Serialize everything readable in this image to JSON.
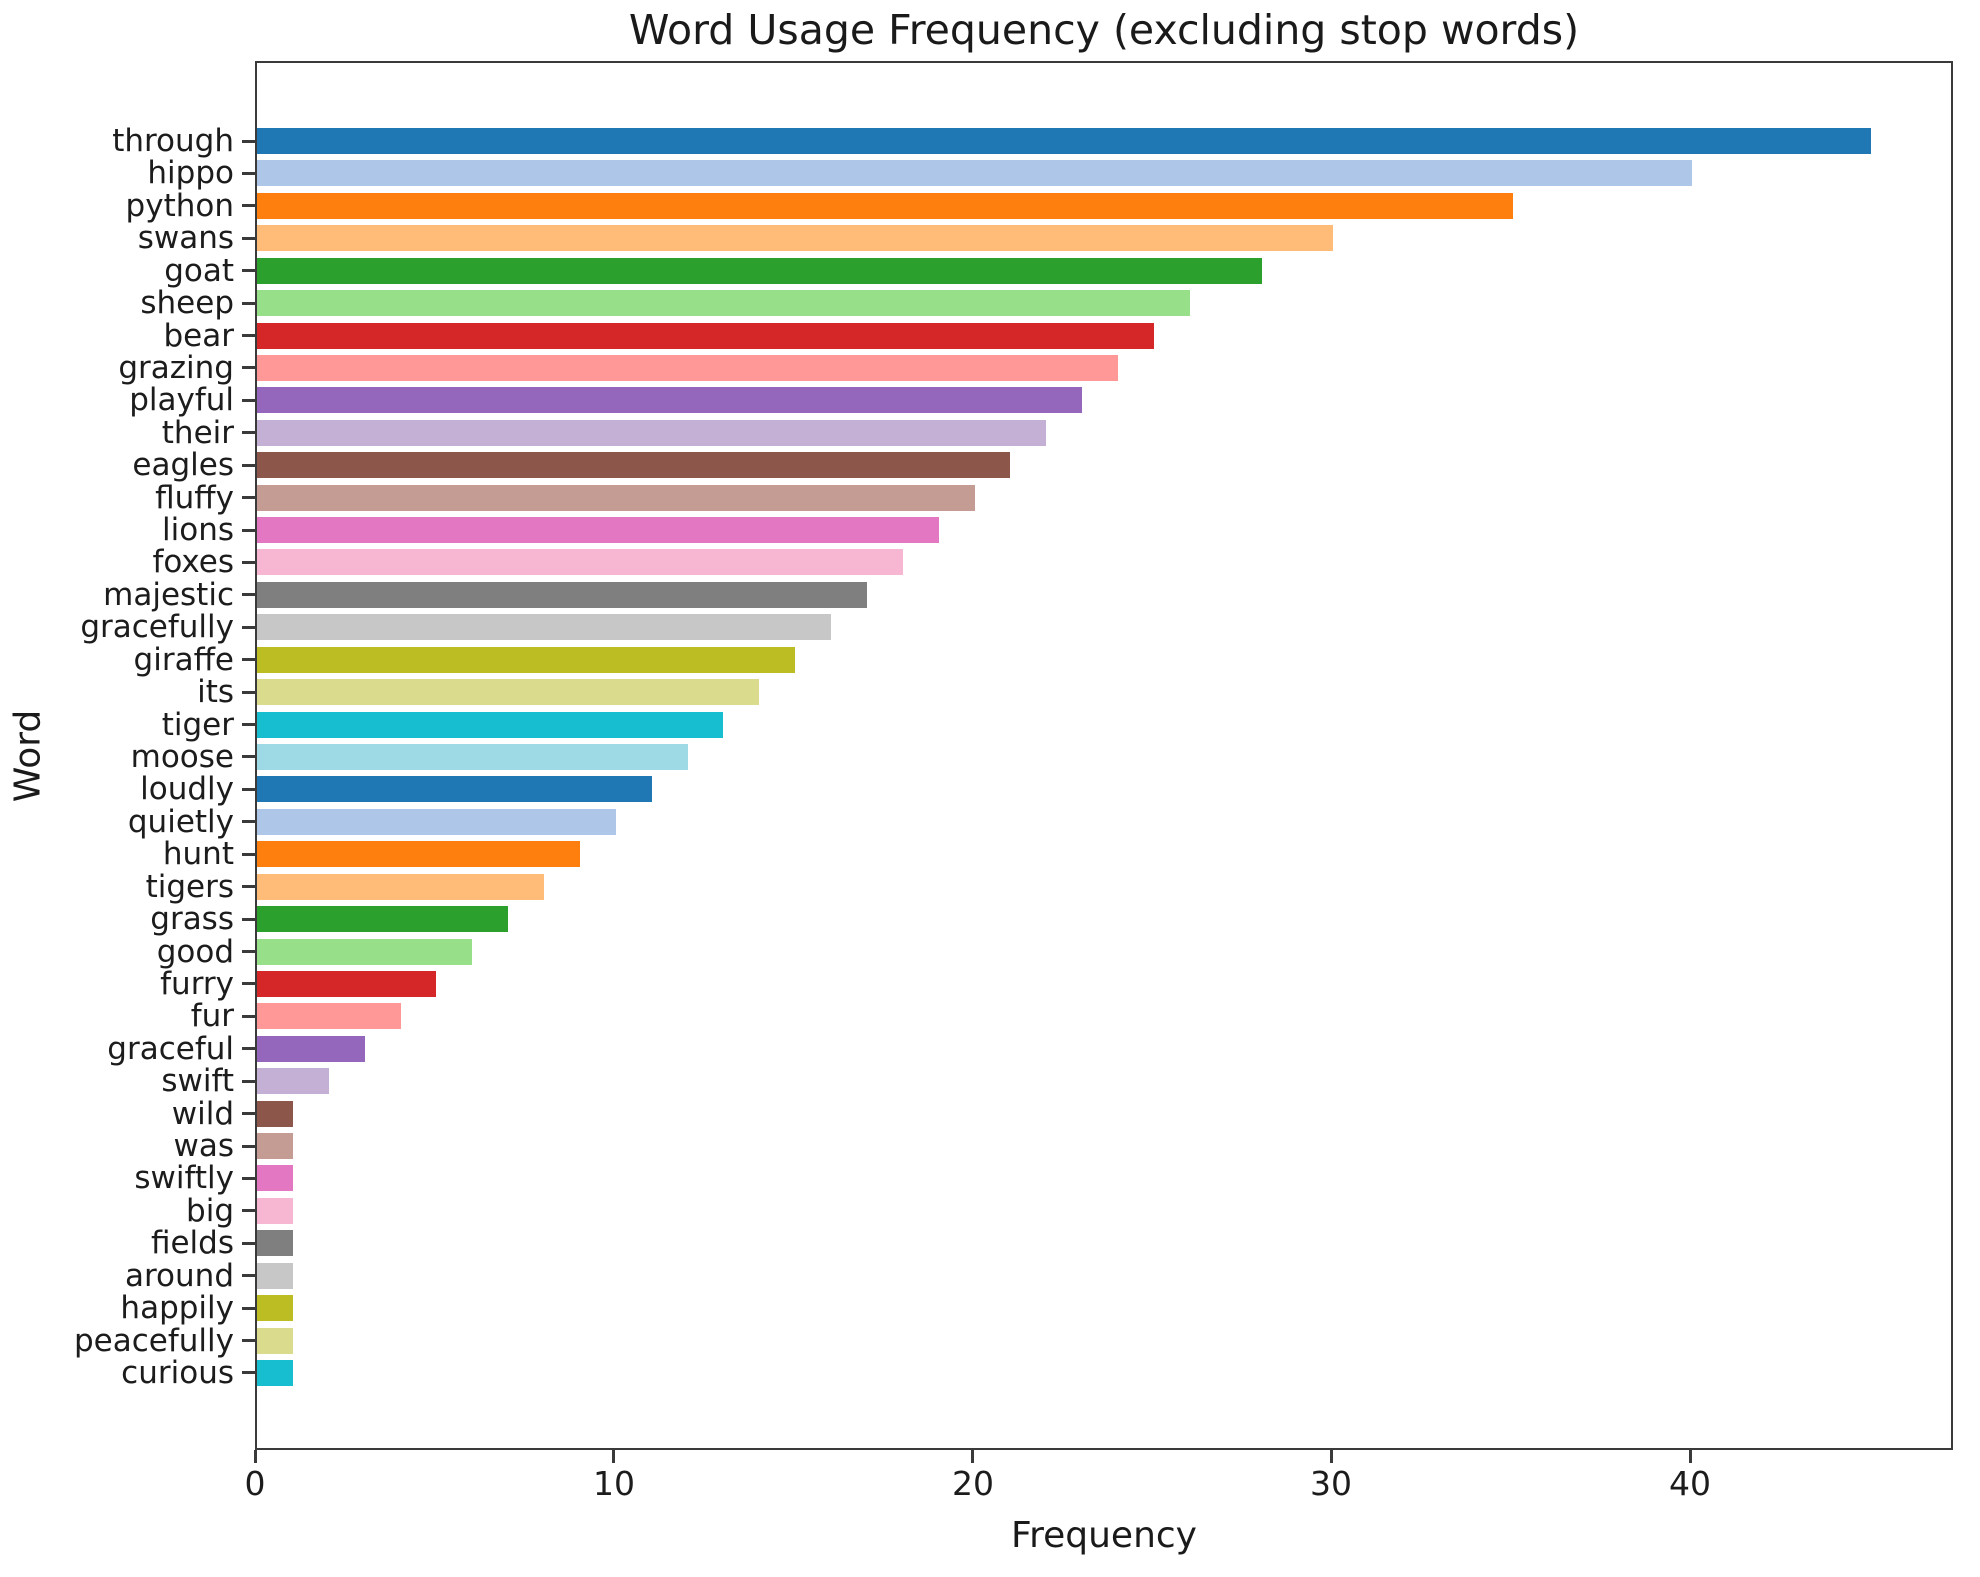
{
  "chart_data": {
    "type": "bar",
    "orientation": "horizontal",
    "title": "Word Usage Frequency (excluding stop words)",
    "xlabel": "Frequency",
    "ylabel": "Word",
    "xlim": [
      0,
      47.3
    ],
    "xticks": [
      0,
      10,
      20,
      30,
      40
    ],
    "grid": false,
    "legend": false,
    "categories": [
      "through",
      "hippo",
      "python",
      "swans",
      "goat",
      "sheep",
      "bear",
      "grazing",
      "playful",
      "their",
      "eagles",
      "fluffy",
      "lions",
      "foxes",
      "majestic",
      "gracefully",
      "giraffe",
      "its",
      "tiger",
      "moose",
      "loudly",
      "quietly",
      "hunt",
      "tigers",
      "grass",
      "good",
      "furry",
      "fur",
      "graceful",
      "swift",
      "wild",
      "was",
      "swiftly",
      "big",
      "fields",
      "around",
      "happily",
      "peacefully",
      "curious"
    ],
    "values": [
      45,
      40,
      35,
      30,
      28,
      26,
      25,
      24,
      23,
      22,
      21,
      20,
      19,
      18,
      17,
      16,
      15,
      14,
      13,
      12,
      11,
      10,
      9,
      8,
      7,
      6,
      5,
      4,
      3,
      2,
      1,
      1,
      1,
      1,
      1,
      1,
      1,
      1,
      1
    ],
    "bar_colors": [
      "#1f77b4",
      "#aec7e8",
      "#ff7f0e",
      "#ffbb78",
      "#2ca02c",
      "#98df8a",
      "#d62728",
      "#ff9896",
      "#9467bd",
      "#c5b0d5",
      "#8c564b",
      "#c49c94",
      "#e377c2",
      "#f7b6d2",
      "#7f7f7f",
      "#c7c7c7",
      "#bcbd22",
      "#dbdb8d",
      "#17becf",
      "#9edae5",
      "#1f77b4",
      "#aec7e8",
      "#ff7f0e",
      "#ffbb78",
      "#2ca02c",
      "#98df8a",
      "#d62728",
      "#ff9896",
      "#9467bd",
      "#c5b0d5",
      "#8c564b",
      "#c49c94",
      "#e377c2",
      "#f7b6d2",
      "#7f7f7f",
      "#c7c7c7",
      "#bcbd22",
      "#dbdb8d",
      "#17becf"
    ],
    "spine_color": "#3a3a3a"
  }
}
